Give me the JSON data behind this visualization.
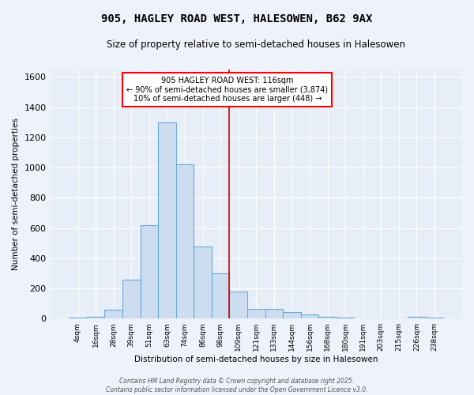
{
  "title": "905, HAGLEY ROAD WEST, HALESOWEN, B62 9AX",
  "subtitle": "Size of property relative to semi-detached houses in Halesowen",
  "xlabel": "Distribution of semi-detached houses by size in Halesowen",
  "ylabel": "Number of semi-detached properties",
  "bar_color": "#ccddf0",
  "bar_edge_color": "#6aaad4",
  "bg_color": "#e8eef8",
  "fig_color": "#eef2fa",
  "grid_color": "#ffffff",
  "categories": [
    "4sqm",
    "16sqm",
    "28sqm",
    "39sqm",
    "51sqm",
    "63sqm",
    "74sqm",
    "86sqm",
    "98sqm",
    "109sqm",
    "121sqm",
    "133sqm",
    "144sqm",
    "156sqm",
    "168sqm",
    "180sqm",
    "191sqm",
    "203sqm",
    "215sqm",
    "226sqm",
    "238sqm"
  ],
  "values": [
    5,
    10,
    60,
    255,
    620,
    1300,
    1020,
    475,
    300,
    180,
    65,
    65,
    45,
    28,
    10,
    5,
    3,
    0,
    0,
    10,
    5
  ],
  "property_label": "905 HAGLEY ROAD WEST: 116sqm",
  "pct_smaller": 90,
  "n_smaller": 3874,
  "pct_larger": 10,
  "n_larger": 448,
  "vline_bin_index": 8.5,
  "ylim": [
    0,
    1650
  ],
  "yticks": [
    0,
    200,
    400,
    600,
    800,
    1000,
    1200,
    1400,
    1600
  ],
  "footer_line1": "Contains HM Land Registry data © Crown copyright and database right 2025.",
  "footer_line2": "Contains public sector information licensed under the Open Government Licence v3.0."
}
